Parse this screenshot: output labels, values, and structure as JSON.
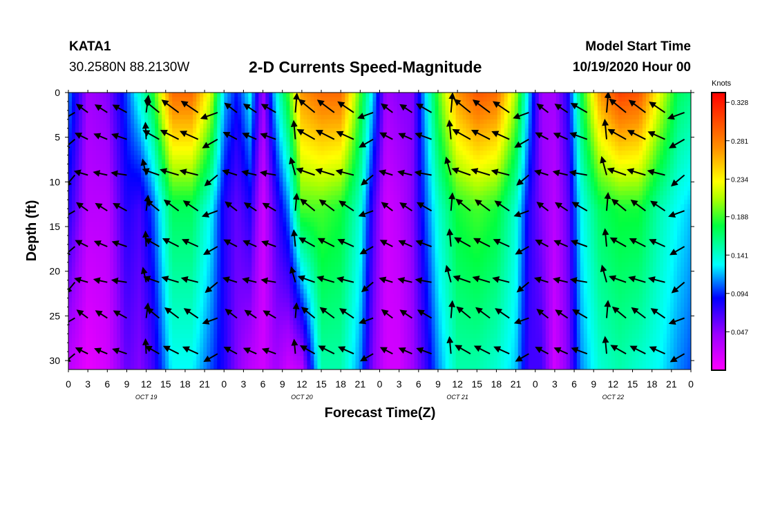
{
  "header": {
    "station": "KATA1",
    "coordinates": "30.2580N 88.2130W",
    "title": "2-D Currents Speed-Magnitude",
    "model_start_label": "Model Start Time",
    "model_start_value": "10/19/2020 Hour 00"
  },
  "chart_data": {
    "type": "heatmap",
    "title": "2-D Currents Speed-Magnitude",
    "xlabel": "Forecast Time(Z)",
    "ylabel": "Depth (ft)",
    "x_tick_labels": [
      "0",
      "3",
      "6",
      "9",
      "12",
      "15",
      "18",
      "21",
      "0",
      "3",
      "6",
      "9",
      "12",
      "15",
      "18",
      "21",
      "0",
      "3",
      "6",
      "9",
      "12",
      "15",
      "18",
      "21",
      "0",
      "3",
      "6",
      "9",
      "12",
      "15",
      "18",
      "21",
      "0"
    ],
    "day_labels": [
      "OCT 19",
      "OCT 20",
      "OCT 21",
      "OCT 22"
    ],
    "xlim_hours": [
      0,
      96
    ],
    "y_ticks": [
      0,
      5,
      10,
      15,
      20,
      25,
      30
    ],
    "ylim": [
      0,
      31
    ],
    "y_inverted": true,
    "colorbar": {
      "unit": "Knots",
      "range": [
        0,
        0.34
      ],
      "tick_values": [
        0.047,
        0.094,
        0.141,
        0.188,
        0.234,
        0.281,
        0.328
      ],
      "tick_labels": [
        "0.047",
        "0.094",
        "0.141",
        "0.188",
        "0.234",
        "0.281",
        "0.328"
      ]
    },
    "speed_field_profiles": [
      {
        "hour": 0,
        "surface": 0.11,
        "mid": 0.08,
        "bottom": 0.03
      },
      {
        "hour": 3,
        "surface": 0.04,
        "mid": 0.03,
        "bottom": 0.01
      },
      {
        "hour": 6,
        "surface": 0.05,
        "mid": 0.03,
        "bottom": 0.02
      },
      {
        "hour": 9,
        "surface": 0.1,
        "mid": 0.08,
        "bottom": 0.06
      },
      {
        "hour": 11,
        "surface": 0.14,
        "mid": 0.07,
        "bottom": 0.05
      },
      {
        "hour": 13,
        "surface": 0.18,
        "mid": 0.1,
        "bottom": 0.07
      },
      {
        "hour": 16,
        "surface": 0.29,
        "mid": 0.17,
        "bottom": 0.13
      },
      {
        "hour": 19,
        "surface": 0.29,
        "mid": 0.17,
        "bottom": 0.13
      },
      {
        "hour": 22,
        "surface": 0.22,
        "mid": 0.13,
        "bottom": 0.1
      },
      {
        "hour": 24,
        "surface": 0.12,
        "mid": 0.08,
        "bottom": 0.08
      },
      {
        "hour": 26,
        "surface": 0.09,
        "mid": 0.06,
        "bottom": 0.05
      },
      {
        "hour": 28,
        "surface": 0.13,
        "mid": 0.08,
        "bottom": 0.03
      },
      {
        "hour": 30,
        "surface": 0.04,
        "mid": 0.02,
        "bottom": 0.02
      },
      {
        "hour": 32,
        "surface": 0.13,
        "mid": 0.07,
        "bottom": 0.04
      },
      {
        "hour": 34,
        "surface": 0.19,
        "mid": 0.11,
        "bottom": 0.02
      },
      {
        "hour": 36,
        "surface": 0.27,
        "mid": 0.19,
        "bottom": 0.03
      },
      {
        "hour": 39,
        "surface": 0.29,
        "mid": 0.19,
        "bottom": 0.15
      },
      {
        "hour": 42,
        "surface": 0.29,
        "mid": 0.18,
        "bottom": 0.15
      },
      {
        "hour": 45,
        "surface": 0.19,
        "mid": 0.14,
        "bottom": 0.11
      },
      {
        "hour": 47,
        "surface": 0.12,
        "mid": 0.07,
        "bottom": 0.05
      },
      {
        "hour": 49,
        "surface": 0.04,
        "mid": 0.02,
        "bottom": 0.02
      },
      {
        "hour": 51,
        "surface": 0.05,
        "mid": 0.03,
        "bottom": 0.02
      },
      {
        "hour": 53,
        "surface": 0.05,
        "mid": 0.05,
        "bottom": 0.04
      },
      {
        "hour": 55,
        "surface": 0.12,
        "mid": 0.1,
        "bottom": 0.07
      },
      {
        "hour": 57,
        "surface": 0.19,
        "mid": 0.14,
        "bottom": 0.11
      },
      {
        "hour": 60,
        "surface": 0.27,
        "mid": 0.18,
        "bottom": 0.15
      },
      {
        "hour": 63,
        "surface": 0.3,
        "mid": 0.19,
        "bottom": 0.15
      },
      {
        "hour": 66,
        "surface": 0.29,
        "mid": 0.18,
        "bottom": 0.14
      },
      {
        "hour": 69,
        "surface": 0.21,
        "mid": 0.14,
        "bottom": 0.12
      },
      {
        "hour": 71,
        "surface": 0.12,
        "mid": 0.08,
        "bottom": 0.07
      },
      {
        "hour": 73,
        "surface": 0.04,
        "mid": 0.05,
        "bottom": 0.07
      },
      {
        "hour": 75,
        "surface": 0.04,
        "mid": 0.03,
        "bottom": 0.02
      },
      {
        "hour": 77,
        "surface": 0.08,
        "mid": 0.06,
        "bottom": 0.05
      },
      {
        "hour": 79,
        "surface": 0.17,
        "mid": 0.13,
        "bottom": 0.11
      },
      {
        "hour": 82,
        "surface": 0.27,
        "mid": 0.17,
        "bottom": 0.14
      },
      {
        "hour": 85,
        "surface": 0.31,
        "mid": 0.18,
        "bottom": 0.15
      },
      {
        "hour": 88,
        "surface": 0.3,
        "mid": 0.18,
        "bottom": 0.14
      },
      {
        "hour": 91,
        "surface": 0.23,
        "mid": 0.15,
        "bottom": 0.13
      },
      {
        "hour": 94,
        "surface": 0.17,
        "mid": 0.13,
        "bottom": 0.11
      },
      {
        "hour": 96,
        "surface": 0.16,
        "mid": 0.12,
        "bottom": 0.1
      }
    ],
    "vector_depths": [
      1,
      4,
      8,
      12,
      16,
      20,
      24,
      28
    ],
    "vector_hours": [
      1,
      3,
      6,
      9,
      12,
      14,
      17,
      20,
      23,
      26,
      29,
      32,
      35,
      38,
      41,
      44,
      47,
      50,
      53,
      56,
      59,
      62,
      65,
      68,
      71,
      74,
      77,
      80,
      83,
      86,
      89,
      92,
      95
    ],
    "vectors_note": "direction of current arrows; ebb toward upper-left (~WNW), reversing at slack water"
  }
}
